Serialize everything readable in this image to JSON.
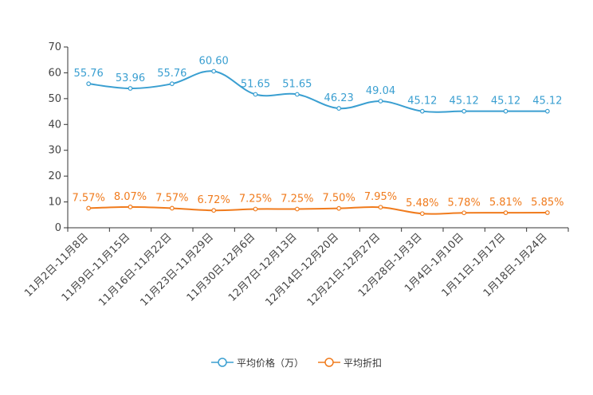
{
  "chart_data": {
    "type": "line",
    "categories": [
      "11月2日-11月8日",
      "11月9日-11月15日",
      "11月16日-11月22日",
      "11月23日-11月29日",
      "11月30日-12月6日",
      "12月7日-12月13日",
      "12月14日-12月20日",
      "12月21日-12月27日",
      "12月28日-1月3日",
      "1月4日-1月10日",
      "1月11日-1月17日",
      "1月18日-1月24日"
    ],
    "ylim": [
      0,
      70
    ],
    "yticks": [
      0,
      10,
      20,
      30,
      40,
      50,
      60,
      70
    ],
    "series": [
      {
        "name": "平均价格（万）",
        "color": "#3a9fd1",
        "values": [
          55.76,
          53.96,
          55.76,
          60.6,
          51.65,
          51.65,
          46.23,
          49.04,
          45.12,
          45.12,
          45.12,
          45.12
        ],
        "labels": [
          "55.76",
          "53.96",
          "55.76",
          "60.60",
          "51.65",
          "51.65",
          "46.23",
          "49.04",
          "45.12",
          "45.12",
          "45.12",
          "45.12"
        ]
      },
      {
        "name": "平均折扣",
        "color": "#f07b1d",
        "values": [
          7.57,
          8.07,
          7.57,
          6.72,
          7.25,
          7.25,
          7.5,
          7.95,
          5.48,
          5.78,
          5.81,
          5.85
        ],
        "labels": [
          "7.57%",
          "8.07%",
          "7.57%",
          "6.72%",
          "7.25%",
          "7.25%",
          "7.50%",
          "7.95%",
          "5.48%",
          "5.78%",
          "5.81%",
          "5.85%"
        ]
      }
    ],
    "legend_position": "bottom-center"
  }
}
